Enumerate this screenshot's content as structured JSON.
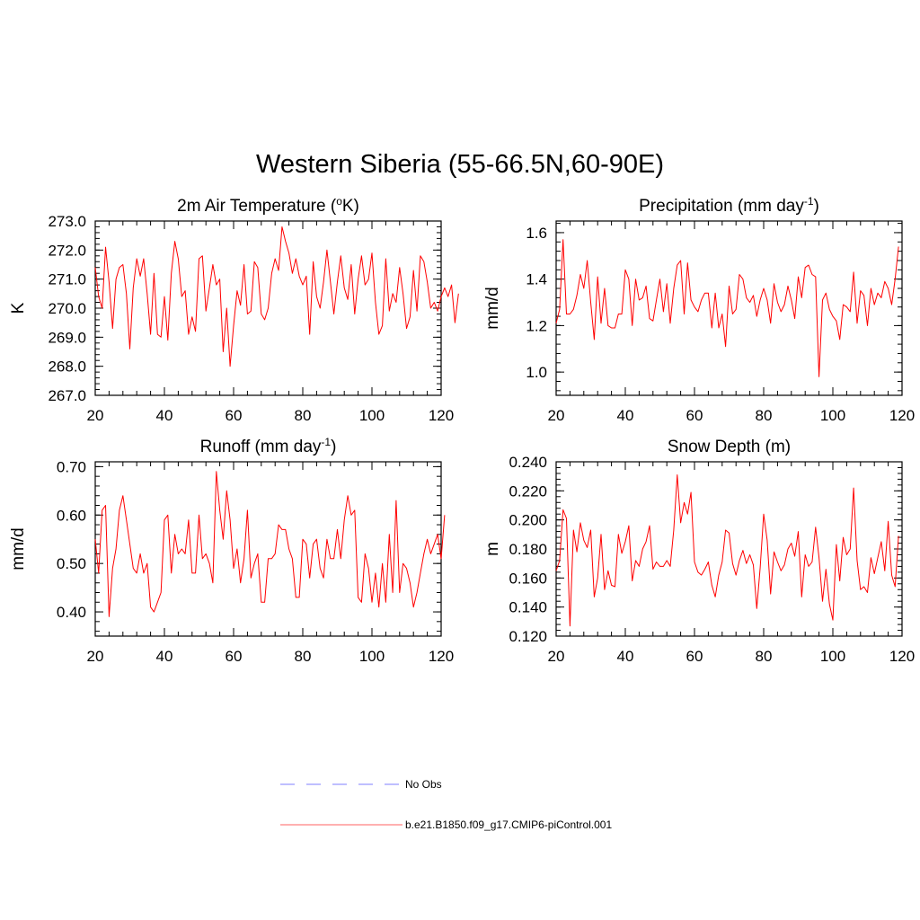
{
  "figure": {
    "title": "Western Siberia (55-66.5N,60-90E)",
    "legend": [
      {
        "label": "No Obs",
        "color": "#9999ff",
        "dash": "dashed"
      },
      {
        "label": "b.e21.B1850.f09_g17.CMIP6-piControl.001",
        "color": "#ff8080",
        "dash": "solid"
      }
    ]
  },
  "chart_data": [
    {
      "type": "line",
      "title": "2m Air Temperature (",
      "title_sup": "o",
      "title_tail": "K)",
      "ylabel": "K",
      "xlim": [
        20,
        120
      ],
      "ylim": [
        267.0,
        273.0
      ],
      "xticks": [
        20,
        40,
        60,
        80,
        100,
        120
      ],
      "yticks": [
        267.0,
        268.0,
        269.0,
        270.0,
        271.0,
        272.0,
        273.0
      ],
      "ytick_labels": [
        "267.0",
        "268.0",
        "269.0",
        "270.0",
        "271.0",
        "272.0",
        "273.0"
      ],
      "series": [
        {
          "color": "#ff0000",
          "x_start": 20,
          "x_step": 1,
          "values": [
            271.4,
            270.4,
            270.0,
            272.1,
            270.9,
            269.3,
            271.0,
            271.4,
            271.5,
            270.5,
            268.6,
            270.7,
            271.7,
            271.1,
            271.7,
            270.5,
            269.1,
            271.2,
            269.1,
            269.0,
            270.4,
            268.9,
            271.2,
            272.3,
            271.7,
            270.4,
            270.6,
            269.1,
            269.7,
            269.2,
            271.7,
            271.8,
            269.9,
            270.7,
            271.5,
            270.8,
            271.0,
            268.5,
            270.0,
            268.0,
            269.4,
            270.6,
            270.1,
            271.5,
            269.8,
            269.9,
            271.6,
            271.4,
            269.8,
            269.6,
            270.0,
            271.2,
            271.7,
            271.3,
            272.8,
            272.3,
            271.9,
            271.2,
            271.7,
            271.1,
            270.8,
            271.1,
            269.1,
            271.6,
            270.4,
            270.0,
            270.9,
            272.0,
            270.9,
            269.8,
            270.9,
            271.8,
            270.7,
            270.3,
            271.5,
            269.8,
            271.0,
            271.8,
            270.8,
            271.0,
            271.9,
            270.2,
            269.1,
            269.4,
            271.7,
            269.9,
            270.5,
            270.2,
            271.4,
            270.5,
            269.3,
            269.7,
            271.3,
            269.9,
            271.8,
            271.6,
            270.9,
            270.0,
            270.2,
            269.9,
            270.4,
            270.7,
            270.4,
            270.8,
            269.5,
            270.5
          ]
        }
      ]
    },
    {
      "type": "line",
      "title": "Precipitation (mm day",
      "title_sup": "-1",
      "title_tail": ")",
      "ylabel": "mm/d",
      "xlim": [
        20,
        120
      ],
      "ylim": [
        0.9,
        1.65
      ],
      "xticks": [
        20,
        40,
        60,
        80,
        100,
        120
      ],
      "yticks": [
        1.0,
        1.2,
        1.4,
        1.6
      ],
      "ytick_labels": [
        "1.0",
        "1.2",
        "1.4",
        "1.6"
      ],
      "series": [
        {
          "color": "#ff0000",
          "x_start": 20,
          "x_step": 1,
          "values": [
            1.21,
            1.27,
            1.57,
            1.25,
            1.25,
            1.27,
            1.33,
            1.42,
            1.36,
            1.48,
            1.3,
            1.14,
            1.41,
            1.21,
            1.36,
            1.2,
            1.19,
            1.19,
            1.25,
            1.25,
            1.44,
            1.4,
            1.2,
            1.4,
            1.31,
            1.32,
            1.37,
            1.23,
            1.22,
            1.31,
            1.4,
            1.26,
            1.38,
            1.21,
            1.36,
            1.46,
            1.48,
            1.25,
            1.47,
            1.31,
            1.28,
            1.26,
            1.31,
            1.34,
            1.34,
            1.19,
            1.34,
            1.19,
            1.25,
            1.11,
            1.37,
            1.25,
            1.27,
            1.42,
            1.4,
            1.32,
            1.3,
            1.33,
            1.24,
            1.31,
            1.36,
            1.31,
            1.21,
            1.38,
            1.3,
            1.26,
            1.29,
            1.37,
            1.31,
            1.23,
            1.41,
            1.32,
            1.45,
            1.46,
            1.42,
            1.41,
            0.98,
            1.31,
            1.34,
            1.27,
            1.24,
            1.22,
            1.14,
            1.29,
            1.28,
            1.26,
            1.43,
            1.21,
            1.35,
            1.33,
            1.2,
            1.36,
            1.29,
            1.34,
            1.32,
            1.39,
            1.36,
            1.29,
            1.4,
            1.54
          ]
        }
      ]
    },
    {
      "type": "line",
      "title": "Runoff (mm day",
      "title_sup": "-1",
      "title_tail": ")",
      "ylabel": "mm/d",
      "xlim": [
        20,
        120
      ],
      "ylim": [
        0.35,
        0.71
      ],
      "xticks": [
        20,
        40,
        60,
        80,
        100,
        120
      ],
      "yticks": [
        0.4,
        0.5,
        0.6,
        0.7
      ],
      "ytick_labels": [
        "0.40",
        "0.50",
        "0.60",
        "0.70"
      ],
      "series": [
        {
          "color": "#ff0000",
          "x_start": 20,
          "x_step": 1,
          "values": [
            0.55,
            0.48,
            0.61,
            0.62,
            0.39,
            0.49,
            0.53,
            0.61,
            0.64,
            0.59,
            0.54,
            0.49,
            0.48,
            0.52,
            0.48,
            0.5,
            0.41,
            0.4,
            0.42,
            0.44,
            0.59,
            0.6,
            0.48,
            0.56,
            0.52,
            0.53,
            0.52,
            0.59,
            0.48,
            0.48,
            0.6,
            0.51,
            0.52,
            0.5,
            0.46,
            0.69,
            0.61,
            0.55,
            0.65,
            0.59,
            0.49,
            0.53,
            0.46,
            0.51,
            0.61,
            0.47,
            0.5,
            0.52,
            0.42,
            0.42,
            0.51,
            0.51,
            0.52,
            0.58,
            0.57,
            0.57,
            0.53,
            0.51,
            0.43,
            0.43,
            0.55,
            0.54,
            0.47,
            0.54,
            0.55,
            0.49,
            0.47,
            0.55,
            0.51,
            0.51,
            0.57,
            0.51,
            0.59,
            0.64,
            0.6,
            0.61,
            0.43,
            0.42,
            0.52,
            0.49,
            0.42,
            0.48,
            0.41,
            0.5,
            0.42,
            0.56,
            0.44,
            0.63,
            0.44,
            0.5,
            0.49,
            0.46,
            0.41,
            0.44,
            0.48,
            0.52,
            0.55,
            0.52,
            0.54,
            0.56,
            0.51,
            0.6
          ]
        }
      ]
    },
    {
      "type": "line",
      "title": "Snow Depth (m)",
      "title_sup": "",
      "title_tail": "",
      "ylabel": "m",
      "xlim": [
        20,
        120
      ],
      "ylim": [
        0.12,
        0.24
      ],
      "xticks": [
        20,
        40,
        60,
        80,
        100,
        120
      ],
      "yticks": [
        0.12,
        0.14,
        0.16,
        0.18,
        0.2,
        0.22,
        0.24
      ],
      "ytick_labels": [
        "0.120",
        "0.140",
        "0.160",
        "0.180",
        "0.200",
        "0.220",
        "0.240"
      ],
      "series": [
        {
          "color": "#ff0000",
          "x_start": 20,
          "x_step": 1,
          "values": [
            0.165,
            0.172,
            0.207,
            0.201,
            0.127,
            0.193,
            0.178,
            0.198,
            0.186,
            0.181,
            0.193,
            0.147,
            0.16,
            0.19,
            0.152,
            0.165,
            0.155,
            0.154,
            0.19,
            0.177,
            0.185,
            0.196,
            0.158,
            0.172,
            0.168,
            0.18,
            0.185,
            0.196,
            0.166,
            0.171,
            0.168,
            0.168,
            0.172,
            0.168,
            0.193,
            0.231,
            0.198,
            0.212,
            0.204,
            0.219,
            0.171,
            0.164,
            0.162,
            0.166,
            0.171,
            0.155,
            0.147,
            0.162,
            0.171,
            0.193,
            0.191,
            0.17,
            0.162,
            0.172,
            0.179,
            0.17,
            0.176,
            0.169,
            0.139,
            0.167,
            0.204,
            0.186,
            0.149,
            0.178,
            0.171,
            0.165,
            0.169,
            0.18,
            0.184,
            0.175,
            0.192,
            0.147,
            0.176,
            0.168,
            0.171,
            0.195,
            0.174,
            0.144,
            0.166,
            0.142,
            0.131,
            0.183,
            0.158,
            0.188,
            0.176,
            0.18,
            0.222,
            0.172,
            0.152,
            0.154,
            0.15,
            0.174,
            0.163,
            0.174,
            0.185,
            0.165,
            0.199,
            0.162,
            0.154,
            0.189
          ]
        }
      ]
    }
  ]
}
